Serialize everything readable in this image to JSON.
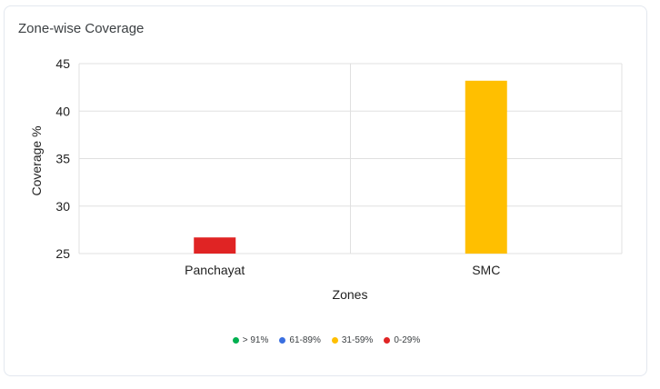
{
  "card": {
    "title": "Zone-wise Coverage"
  },
  "chart_data": {
    "type": "bar",
    "categories": [
      "Panchayat",
      "SMC"
    ],
    "values": [
      26.7,
      43.2
    ],
    "bar_colors": [
      "#e02424",
      "#ffbf00"
    ],
    "xlabel": "Zones",
    "ylabel": "Coverage %",
    "ylim": [
      25,
      45
    ],
    "yticks": [
      25,
      30,
      35,
      40,
      45
    ],
    "grid": true,
    "legend": {
      "position": "bottom",
      "items": [
        {
          "label": "> 91%",
          "color": "#00b050"
        },
        {
          "label": "61-89%",
          "color": "#3a6fe0"
        },
        {
          "label": "31-59%",
          "color": "#ffbf00"
        },
        {
          "label": "0-29%",
          "color": "#e02424"
        }
      ]
    }
  }
}
